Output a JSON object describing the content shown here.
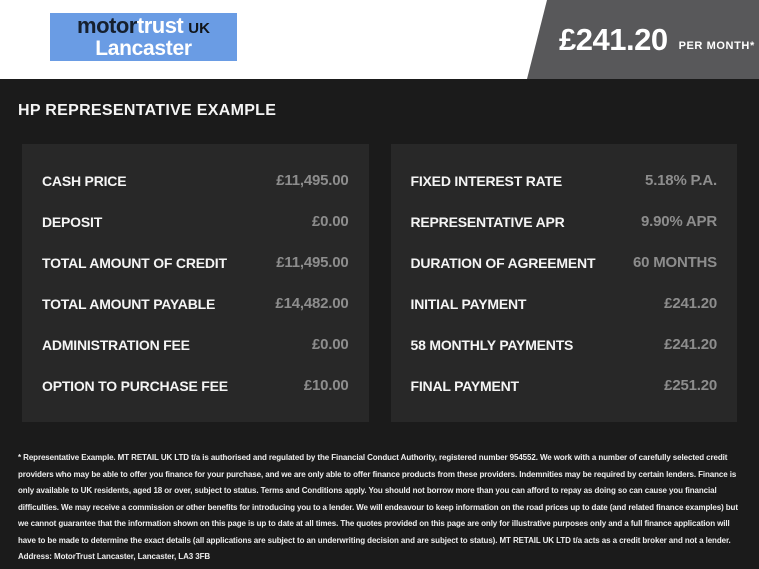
{
  "header": {
    "logo": {
      "motor": "motor",
      "trust": "trust",
      "uk": "UK",
      "location": "Lancaster"
    },
    "price_amount": "£241.20",
    "price_suffix": "PER MONTH*"
  },
  "title": "HP REPRESENTATIVE EXAMPLE",
  "finance": {
    "left_rows": [
      {
        "label": "CASH PRICE",
        "value": "£11,495.00"
      },
      {
        "label": "DEPOSIT",
        "value": "£0.00"
      },
      {
        "label": "TOTAL AMOUNT OF CREDIT",
        "value": "£11,495.00"
      },
      {
        "label": "TOTAL AMOUNT PAYABLE",
        "value": "£14,482.00"
      },
      {
        "label": "ADMINISTRATION FEE",
        "value": "£0.00"
      },
      {
        "label": "OPTION TO PURCHASE FEE",
        "value": "£10.00"
      }
    ],
    "right_rows": [
      {
        "label": "FIXED INTEREST RATE",
        "value": "5.18% P.A."
      },
      {
        "label": "REPRESENTATIVE APR",
        "value": "9.90% APR"
      },
      {
        "label": "DURATION OF AGREEMENT",
        "value": "60 MONTHS"
      },
      {
        "label": "INITIAL PAYMENT",
        "value": "£241.20"
      },
      {
        "label": "58 MONTHLY PAYMENTS",
        "value": "£241.20"
      },
      {
        "label": "FINAL PAYMENT",
        "value": "£251.20"
      }
    ]
  },
  "disclaimer": "* Representative Example. MT RETAIL UK LTD t/a is authorised and regulated by the Financial Conduct Authority, registered number 954552. We work with a number of carefully selected credit providers who may be able to offer you finance for your purchase, and we are only able to offer finance products from these providers. Indemnities may be required by certain lenders. Finance is only available to UK residents, aged 18 or over, subject to status. Terms and Conditions apply. You should not borrow more than you can afford to repay as doing so can cause you financial difficulties. We may receive a commission or other benefits for introducing you to a lender. We will endeavour to keep information on the road prices up to date (and related finance examples) but we cannot guarantee that the information shown on this page is up to date at all times. The quotes provided on this page are only for illustrative purposes only and a full finance application will have to be made to determine the exact details (all applications are subject to an underwriting decision and are subject to status). MT RETAIL UK LTD t/a acts as a credit broker and not a lender. Address: MotorTrust Lancaster, Lancaster, LA3 3FB",
  "colors": {
    "logo_blue": "#6a9ce4",
    "banner_gray": "#58585a",
    "page_background": "#1b1b1b",
    "panel_background": "#282828",
    "value_gray": "#8d8d8d"
  }
}
